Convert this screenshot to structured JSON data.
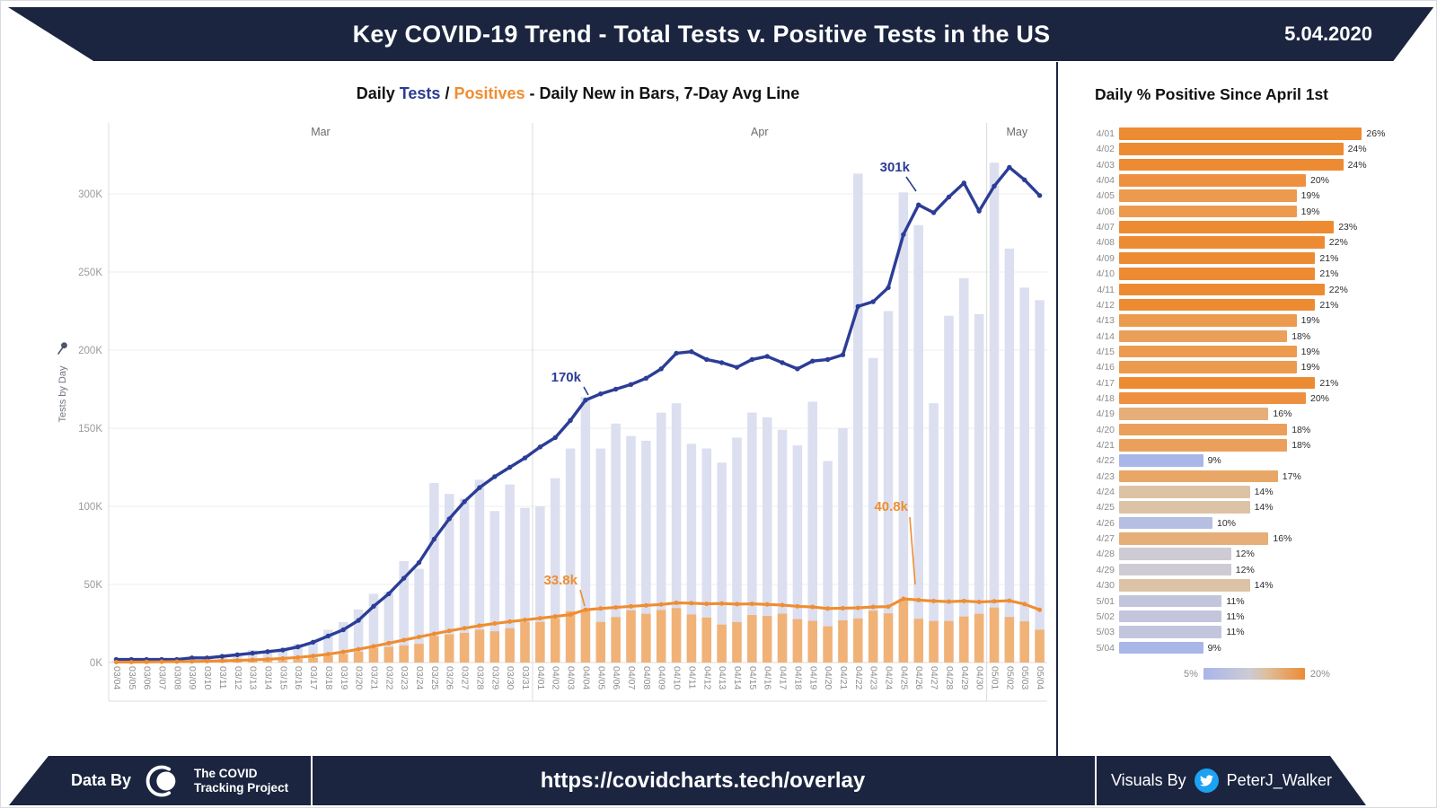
{
  "header": {
    "title": "Key COVID-19 Trend - Total Tests v. Positive Tests in the US",
    "date": "5.04.2020"
  },
  "main_chart": {
    "subtitle_parts": [
      {
        "text": "Daily ",
        "color": "#111111"
      },
      {
        "text": "Tests",
        "color": "#2C3D96"
      },
      {
        "text": " / ",
        "color": "#111111"
      },
      {
        "text": "Positives",
        "color": "#EF8D31"
      },
      {
        "text": " - Daily New in Bars, 7-Day Avg Line",
        "color": "#111111"
      }
    ],
    "y_axis_label": "Tests by Day",
    "y_ticks": [
      "0K",
      "50K",
      "100K",
      "150K",
      "200K",
      "250K",
      "300K"
    ]
  },
  "right_panel": {
    "title": "Daily % Positive Since April 1st",
    "legend_min": "5%",
    "legend_max": "20%"
  },
  "footer": {
    "data_by": "Data By",
    "logo_line1": "The COVID",
    "logo_line2": "Tracking Project",
    "url": "https://covidcharts.tech/overlay",
    "visuals_by": "Visuals By",
    "handle": "PeterJ_Walker"
  },
  "colors": {
    "navy": "#1B2540",
    "tests_line": "#2C3D96",
    "positives_line": "#EF8D31",
    "tests_bar": "#DBDFEF",
    "positives_bar": "#F1B277",
    "grid": "#ECECEC",
    "axis": "#DCDCDC",
    "axis_text": "#8E8E8E",
    "twitter_blue": "#1DA1F2",
    "scale_min_color": "#A9B6E8",
    "scale_max_color": "#ED8B33"
  },
  "chart_data": [
    {
      "type": "combo",
      "title": "Daily Tests / Positives - Daily New in Bars, 7-Day Avg Line",
      "ylabel": "Tests by Day",
      "ylim_k": [
        0,
        335
      ],
      "y_ticks_k": [
        0,
        50,
        100,
        150,
        200,
        250,
        300
      ],
      "months": [
        {
          "label": "Mar",
          "days": 28
        },
        {
          "label": "Apr",
          "days": 30
        },
        {
          "label": "May",
          "days": 4
        }
      ],
      "x": [
        "03/04",
        "03/05",
        "03/06",
        "03/07",
        "03/08",
        "03/09",
        "03/10",
        "03/11",
        "03/12",
        "03/13",
        "03/14",
        "03/15",
        "03/16",
        "03/17",
        "03/18",
        "03/19",
        "03/20",
        "03/21",
        "03/22",
        "03/23",
        "03/24",
        "03/25",
        "03/26",
        "03/27",
        "03/28",
        "03/29",
        "03/30",
        "03/31",
        "04/01",
        "04/02",
        "04/03",
        "04/04",
        "04/05",
        "04/06",
        "04/07",
        "04/08",
        "04/09",
        "04/10",
        "04/11",
        "04/12",
        "04/13",
        "04/14",
        "04/15",
        "04/16",
        "04/17",
        "04/18",
        "04/19",
        "04/20",
        "04/21",
        "04/22",
        "04/23",
        "04/24",
        "04/25",
        "04/26",
        "04/27",
        "04/28",
        "04/29",
        "04/30",
        "05/01",
        "05/02",
        "05/03",
        "05/04"
      ],
      "series": [
        {
          "name": "Daily New Tests",
          "type": "bar",
          "color": "#DBDFEF",
          "values_k": [
            1,
            1,
            1,
            2,
            2,
            2,
            3,
            4,
            5,
            8,
            7,
            9,
            12,
            13,
            21,
            26,
            34,
            44,
            45,
            65,
            60,
            115,
            108,
            105,
            117,
            97,
            114,
            99,
            100,
            118,
            137,
            170,
            137,
            153,
            145,
            142,
            160,
            166,
            140,
            137,
            128,
            144,
            160,
            157,
            149,
            139,
            167,
            129,
            150,
            313,
            195,
            225,
            301,
            280,
            166,
            222,
            246,
            223,
            320,
            265,
            240,
            232
          ]
        },
        {
          "name": "Daily New Positives",
          "type": "bar",
          "color": "#F1B277",
          "values_k": [
            0.1,
            0.1,
            0.1,
            0.2,
            0.3,
            0.3,
            0.4,
            0.5,
            0.7,
            1,
            1.2,
            1.5,
            2.2,
            3,
            4.5,
            5.5,
            7,
            9.5,
            10,
            11,
            12,
            17,
            18,
            19,
            21,
            20,
            22,
            26,
            26,
            28.3,
            32.9,
            33.8,
            26,
            29.1,
            33.4,
            31.2,
            33.6,
            34.9,
            30.8,
            28.8,
            24.3,
            25.9,
            30.4,
            29.8,
            31.3,
            27.8,
            26.7,
            23.2,
            27,
            28.2,
            33.2,
            31.5,
            40.8,
            28,
            26.6,
            26.6,
            29.5,
            31.2,
            35.2,
            29.2,
            26.4,
            21
          ]
        },
        {
          "name": "Tests 7-Day Avg",
          "type": "line",
          "color": "#2C3D96",
          "values_k": [
            2,
            2,
            2,
            2,
            2,
            3,
            3,
            4,
            5,
            6,
            7,
            8,
            10,
            13,
            17,
            21,
            27,
            36,
            44,
            54,
            64,
            79,
            92,
            103,
            112,
            119,
            125,
            131,
            138,
            144,
            155,
            168,
            172,
            175,
            178,
            182,
            188,
            198,
            199,
            194,
            192,
            189,
            194,
            196,
            192,
            188,
            193,
            194,
            197,
            228,
            231,
            240,
            274,
            293,
            288,
            298,
            307,
            289,
            305,
            317,
            309,
            299
          ]
        },
        {
          "name": "Positives 7-Day Avg",
          "type": "line",
          "color": "#EF8D31",
          "values_k": [
            0.3,
            0.3,
            0.4,
            0.5,
            0.6,
            0.7,
            0.9,
            1.1,
            1.4,
            1.7,
            2.1,
            2.6,
            3.3,
            4.2,
            5.4,
            6.8,
            8.5,
            10.4,
            12.4,
            14.4,
            16.4,
            18.4,
            20.3,
            22,
            23.6,
            25,
            26.2,
            27.3,
            28.4,
            29.5,
            30.7,
            33.8,
            34.6,
            35.3,
            36,
            36.6,
            37.2,
            38.2,
            38,
            37.6,
            37.8,
            37.4,
            37.6,
            37.2,
            36.8,
            36,
            35.6,
            34.6,
            34.8,
            35,
            35.6,
            35.8,
            40.8,
            40,
            39.4,
            39,
            39.4,
            38.8,
            39.2,
            39.6,
            37.4,
            33.8
          ]
        }
      ],
      "annotations": [
        {
          "label": "170k",
          "date": "04/04",
          "series": "tests"
        },
        {
          "label": "301k",
          "date": "04/25",
          "series": "tests"
        },
        {
          "label": "33.8k",
          "date": "04/04",
          "series": "positives"
        },
        {
          "label": "40.8k",
          "date": "04/25",
          "series": "positives"
        }
      ]
    },
    {
      "type": "bar",
      "orientation": "horizontal",
      "title": "Daily % Positive Since April 1st",
      "categories": [
        "4/01",
        "4/02",
        "4/03",
        "4/04",
        "4/05",
        "4/06",
        "4/07",
        "4/08",
        "4/09",
        "4/10",
        "4/11",
        "4/12",
        "4/13",
        "4/14",
        "4/15",
        "4/16",
        "4/17",
        "4/18",
        "4/19",
        "4/20",
        "4/21",
        "4/22",
        "4/23",
        "4/24",
        "4/25",
        "4/26",
        "4/27",
        "4/28",
        "4/29",
        "4/30",
        "5/01",
        "5/02",
        "5/03",
        "5/04"
      ],
      "values_pct": [
        26,
        24,
        24,
        20,
        19,
        19,
        23,
        22,
        21,
        21,
        22,
        21,
        19,
        18,
        19,
        19,
        21,
        20,
        16,
        18,
        18,
        9,
        17,
        14,
        14,
        10,
        16,
        12,
        12,
        14,
        11,
        11,
        11,
        9
      ],
      "color_scale": {
        "min_pct": 5,
        "max_pct": 20,
        "min_color": "#A9B6E8",
        "max_color": "#ED8B33",
        "legend_position": "bottom"
      }
    }
  ]
}
